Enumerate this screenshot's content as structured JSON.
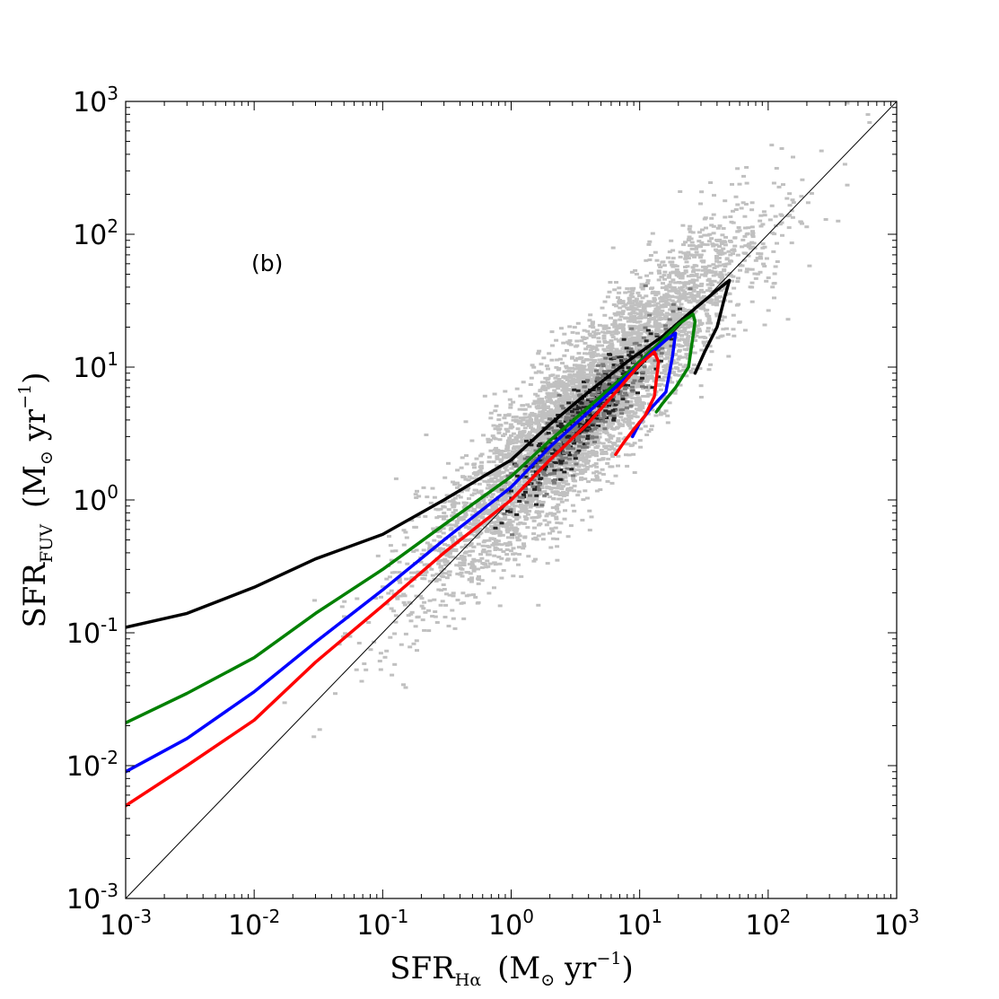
{
  "chart_data": {
    "type": "line",
    "title": "",
    "annotation": "(b)",
    "xlabel": {
      "main": "SFR",
      "sub": "Hα",
      "unit_open": "(M",
      "unit_mid": " yr",
      "unit_exp": "−1",
      "unit_close": ")"
    },
    "ylabel": {
      "main": "SFR",
      "sub": "FUV",
      "unit_open": "(M",
      "unit_mid": " yr",
      "unit_exp": "−1",
      "unit_close": ")"
    },
    "xscale": "log",
    "yscale": "log",
    "xlim": [
      0.001,
      1000
    ],
    "ylim": [
      0.001,
      1000
    ],
    "x_tick_labels": [
      {
        "base": "10",
        "exp": "-3",
        "value": 0.001
      },
      {
        "base": "10",
        "exp": "-2",
        "value": 0.01
      },
      {
        "base": "10",
        "exp": "-1",
        "value": 0.1
      },
      {
        "base": "10",
        "exp": "0",
        "value": 1
      },
      {
        "base": "10",
        "exp": "1",
        "value": 10
      },
      {
        "base": "10",
        "exp": "2",
        "value": 100
      },
      {
        "base": "10",
        "exp": "3",
        "value": 1000
      }
    ],
    "y_tick_labels": [
      {
        "base": "10",
        "exp": "-3",
        "value": 0.001
      },
      {
        "base": "10",
        "exp": "-2",
        "value": 0.01
      },
      {
        "base": "10",
        "exp": "-1",
        "value": 0.1
      },
      {
        "base": "10",
        "exp": "0",
        "value": 1
      },
      {
        "base": "10",
        "exp": "1",
        "value": 10
      },
      {
        "base": "10",
        "exp": "2",
        "value": 100
      },
      {
        "base": "10",
        "exp": "3",
        "value": 1000
      }
    ],
    "grid": false,
    "background_scatter": {
      "color_light": "#c0c0c0",
      "color_mid": "#7a7a7a",
      "color_dark": "#222222",
      "center_slope": 1.0
    },
    "series": [
      {
        "color": "#000000",
        "x": [
          0.001,
          0.003,
          0.01,
          0.03,
          0.1,
          0.3,
          1,
          2,
          4,
          8,
          15,
          25,
          40,
          50,
          46,
          40,
          32,
          27
        ],
        "y": [
          0.11,
          0.14,
          0.22,
          0.36,
          0.55,
          1.0,
          2.0,
          3.7,
          6.5,
          11,
          17,
          26,
          38,
          45,
          34,
          20,
          13,
          9
        ]
      },
      {
        "color": "#008000",
        "x": [
          0.001,
          0.003,
          0.01,
          0.03,
          0.1,
          0.3,
          1,
          2,
          4,
          8,
          14,
          20,
          26,
          27,
          24,
          19,
          15,
          13.5
        ],
        "y": [
          0.021,
          0.035,
          0.065,
          0.14,
          0.3,
          0.65,
          1.5,
          2.8,
          5,
          9,
          15,
          21,
          25,
          22,
          10,
          7,
          5.3,
          4.6
        ]
      },
      {
        "color": "#0000ff",
        "x": [
          0.001,
          0.003,
          0.01,
          0.03,
          0.1,
          0.3,
          1,
          2,
          4,
          8,
          12,
          16,
          19,
          18,
          16,
          12,
          10,
          8.8
        ],
        "y": [
          0.009,
          0.016,
          0.036,
          0.085,
          0.21,
          0.5,
          1.25,
          2.5,
          4.6,
          8.5,
          12.5,
          16,
          18,
          12,
          6.5,
          4.8,
          3.8,
          3.0
        ]
      },
      {
        "color": "#ff0000",
        "x": [
          0.001,
          0.003,
          0.01,
          0.03,
          0.1,
          0.3,
          1,
          2,
          4,
          7,
          10,
          13,
          14,
          13,
          11,
          9,
          7.5,
          6.5
        ],
        "y": [
          0.005,
          0.01,
          0.022,
          0.06,
          0.16,
          0.4,
          1.0,
          2.0,
          3.8,
          7,
          10.5,
          13,
          11,
          6,
          4.3,
          3.4,
          2.7,
          2.2
        ]
      }
    ],
    "reference_line": {
      "label": "1:1",
      "x": [
        0.001,
        1000
      ],
      "y": [
        0.001,
        1000
      ],
      "color": "#000000"
    }
  }
}
